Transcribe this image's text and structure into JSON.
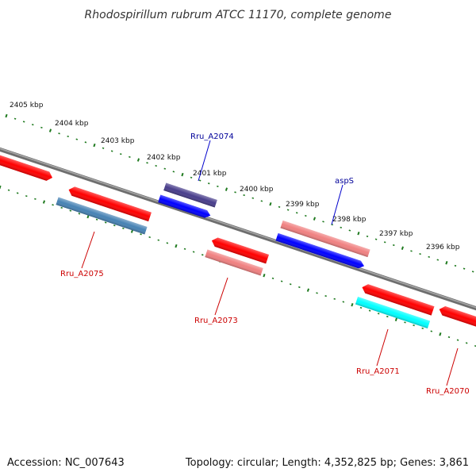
{
  "title": "Rhodospirillum rubrum ATCC 11170, complete genome",
  "footer": {
    "accession": "Accession: NC_007643",
    "summary": "Topology: circular; Length: 4,352,825 bp; Genes: 3,861"
  },
  "scale_labels": [
    "2405 kbp",
    "2404 kbp",
    "2403 kbp",
    "2402 kbp",
    "2401 kbp",
    "2400 kbp",
    "2399 kbp",
    "2398 kbp",
    "2397 kbp",
    "2396 kbp"
  ],
  "colors": {
    "backbone": "#8a8a8a",
    "tick_green": "#1f7a1f",
    "red": "#ff0000",
    "light_red": "#f08080",
    "blue": "#0000ff",
    "dark_slate": "#483d8b",
    "steel_blue": "#4682b4",
    "cyan": "#00ffff",
    "label_red": "#cc0000",
    "label_blue": "#000099"
  },
  "gene_labels": [
    {
      "id": "Rru_A2074",
      "text": "Rru_A2074",
      "color": "label_blue"
    },
    {
      "id": "aspS",
      "text": "aspS",
      "color": "label_blue"
    },
    {
      "id": "Rru_A2075",
      "text": "Rru_A2075",
      "color": "label_red"
    },
    {
      "id": "Rru_A2073",
      "text": "Rru_A2073",
      "color": "label_red"
    },
    {
      "id": "Rru_A2071",
      "text": "Rru_A2071",
      "color": "label_red"
    },
    {
      "id": "Rru_A2070",
      "text": "Rru_A2070",
      "color": "label_red"
    }
  ],
  "features": [
    {
      "name": "feature-red-1",
      "color": "red"
    },
    {
      "name": "feature-red-2",
      "color": "red"
    },
    {
      "name": "feature-steelblue-2075",
      "color": "steel_blue"
    },
    {
      "name": "feature-slate-2074",
      "color": "dark_slate"
    },
    {
      "name": "feature-blue-2074",
      "color": "blue"
    },
    {
      "name": "feature-red-2073",
      "color": "red"
    },
    {
      "name": "feature-lightred-2073",
      "color": "light_red"
    },
    {
      "name": "feature-lightred-asps",
      "color": "light_red"
    },
    {
      "name": "feature-blue-asps",
      "color": "blue"
    },
    {
      "name": "feature-red-2071",
      "color": "red"
    },
    {
      "name": "feature-cyan-2071",
      "color": "cyan"
    },
    {
      "name": "feature-red-2070",
      "color": "red"
    }
  ]
}
